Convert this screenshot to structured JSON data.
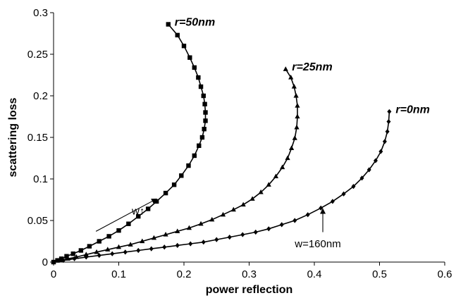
{
  "chart_data": {
    "type": "scatter",
    "title": "",
    "xlabel": "power reflection",
    "ylabel": "scattering loss",
    "xlim": [
      0,
      0.6
    ],
    "ylim": [
      0,
      0.3
    ],
    "x_ticks": [
      "0",
      "0.1",
      "0.2",
      "0.3",
      "0.4",
      "0.5",
      "0.6"
    ],
    "y_ticks": [
      "0",
      "0.05",
      "0.1",
      "0.15",
      "0.2",
      "0.25",
      "0.3"
    ],
    "grid": false,
    "legend": "none",
    "series": [
      {
        "name": "r=50nm",
        "marker": "square",
        "points": [
          [
            0.0,
            0.0
          ],
          [
            0.006,
            0.002
          ],
          [
            0.012,
            0.004
          ],
          [
            0.02,
            0.007
          ],
          [
            0.03,
            0.01
          ],
          [
            0.042,
            0.014
          ],
          [
            0.055,
            0.019
          ],
          [
            0.07,
            0.025
          ],
          [
            0.085,
            0.031
          ],
          [
            0.1,
            0.038
          ],
          [
            0.115,
            0.046
          ],
          [
            0.13,
            0.055
          ],
          [
            0.145,
            0.064
          ],
          [
            0.158,
            0.073
          ],
          [
            0.172,
            0.083
          ],
          [
            0.185,
            0.093
          ],
          [
            0.196,
            0.104
          ],
          [
            0.207,
            0.116
          ],
          [
            0.216,
            0.128
          ],
          [
            0.223,
            0.14
          ],
          [
            0.228,
            0.15
          ],
          [
            0.231,
            0.16
          ],
          [
            0.233,
            0.17
          ],
          [
            0.233,
            0.18
          ],
          [
            0.232,
            0.19
          ],
          [
            0.23,
            0.2
          ],
          [
            0.226,
            0.211
          ],
          [
            0.222,
            0.222
          ],
          [
            0.216,
            0.234
          ],
          [
            0.209,
            0.246
          ],
          [
            0.2,
            0.26
          ],
          [
            0.19,
            0.273
          ],
          [
            0.176,
            0.286
          ]
        ]
      },
      {
        "name": "r=25nm",
        "marker": "triangle",
        "points": [
          [
            0.0,
            0.0
          ],
          [
            0.01,
            0.002
          ],
          [
            0.022,
            0.004
          ],
          [
            0.035,
            0.006
          ],
          [
            0.05,
            0.009
          ],
          [
            0.066,
            0.012
          ],
          [
            0.083,
            0.015
          ],
          [
            0.1,
            0.018
          ],
          [
            0.118,
            0.021
          ],
          [
            0.136,
            0.025
          ],
          [
            0.154,
            0.029
          ],
          [
            0.172,
            0.033
          ],
          [
            0.19,
            0.037
          ],
          [
            0.208,
            0.041
          ],
          [
            0.226,
            0.046
          ],
          [
            0.243,
            0.051
          ],
          [
            0.26,
            0.057
          ],
          [
            0.276,
            0.063
          ],
          [
            0.291,
            0.069
          ],
          [
            0.305,
            0.076
          ],
          [
            0.318,
            0.084
          ],
          [
            0.33,
            0.093
          ],
          [
            0.341,
            0.103
          ],
          [
            0.351,
            0.114
          ],
          [
            0.359,
            0.125
          ],
          [
            0.365,
            0.137
          ],
          [
            0.37,
            0.149
          ],
          [
            0.373,
            0.162
          ],
          [
            0.374,
            0.175
          ],
          [
            0.374,
            0.188
          ],
          [
            0.372,
            0.2
          ],
          [
            0.369,
            0.211
          ],
          [
            0.364,
            0.222
          ],
          [
            0.356,
            0.232
          ]
        ]
      },
      {
        "name": "r=0nm",
        "marker": "diamond",
        "points": [
          [
            0.0,
            0.0
          ],
          [
            0.015,
            0.002
          ],
          [
            0.032,
            0.004
          ],
          [
            0.05,
            0.006
          ],
          [
            0.07,
            0.008
          ],
          [
            0.09,
            0.01
          ],
          [
            0.11,
            0.012
          ],
          [
            0.13,
            0.014
          ],
          [
            0.15,
            0.016
          ],
          [
            0.17,
            0.018
          ],
          [
            0.19,
            0.02
          ],
          [
            0.21,
            0.022
          ],
          [
            0.23,
            0.024
          ],
          [
            0.25,
            0.027
          ],
          [
            0.27,
            0.03
          ],
          [
            0.29,
            0.033
          ],
          [
            0.31,
            0.036
          ],
          [
            0.33,
            0.04
          ],
          [
            0.35,
            0.045
          ],
          [
            0.37,
            0.05
          ],
          [
            0.39,
            0.057
          ],
          [
            0.41,
            0.065
          ],
          [
            0.428,
            0.073
          ],
          [
            0.445,
            0.082
          ],
          [
            0.46,
            0.091
          ],
          [
            0.473,
            0.101
          ],
          [
            0.484,
            0.111
          ],
          [
            0.494,
            0.122
          ],
          [
            0.502,
            0.133
          ],
          [
            0.508,
            0.145
          ],
          [
            0.512,
            0.157
          ],
          [
            0.514,
            0.169
          ],
          [
            0.515,
            0.181
          ]
        ]
      }
    ],
    "annotations": [
      {
        "text": "w↑",
        "x": 0.12,
        "y": 0.057,
        "arrow_from": [
          0.065,
          0.037
        ],
        "arrow_to": [
          0.158,
          0.076
        ]
      },
      {
        "text": "w=160nm",
        "x": 0.37,
        "y": 0.018,
        "arrow_from": [
          0.413,
          0.036
        ],
        "arrow_to": [
          0.413,
          0.064
        ]
      }
    ]
  }
}
